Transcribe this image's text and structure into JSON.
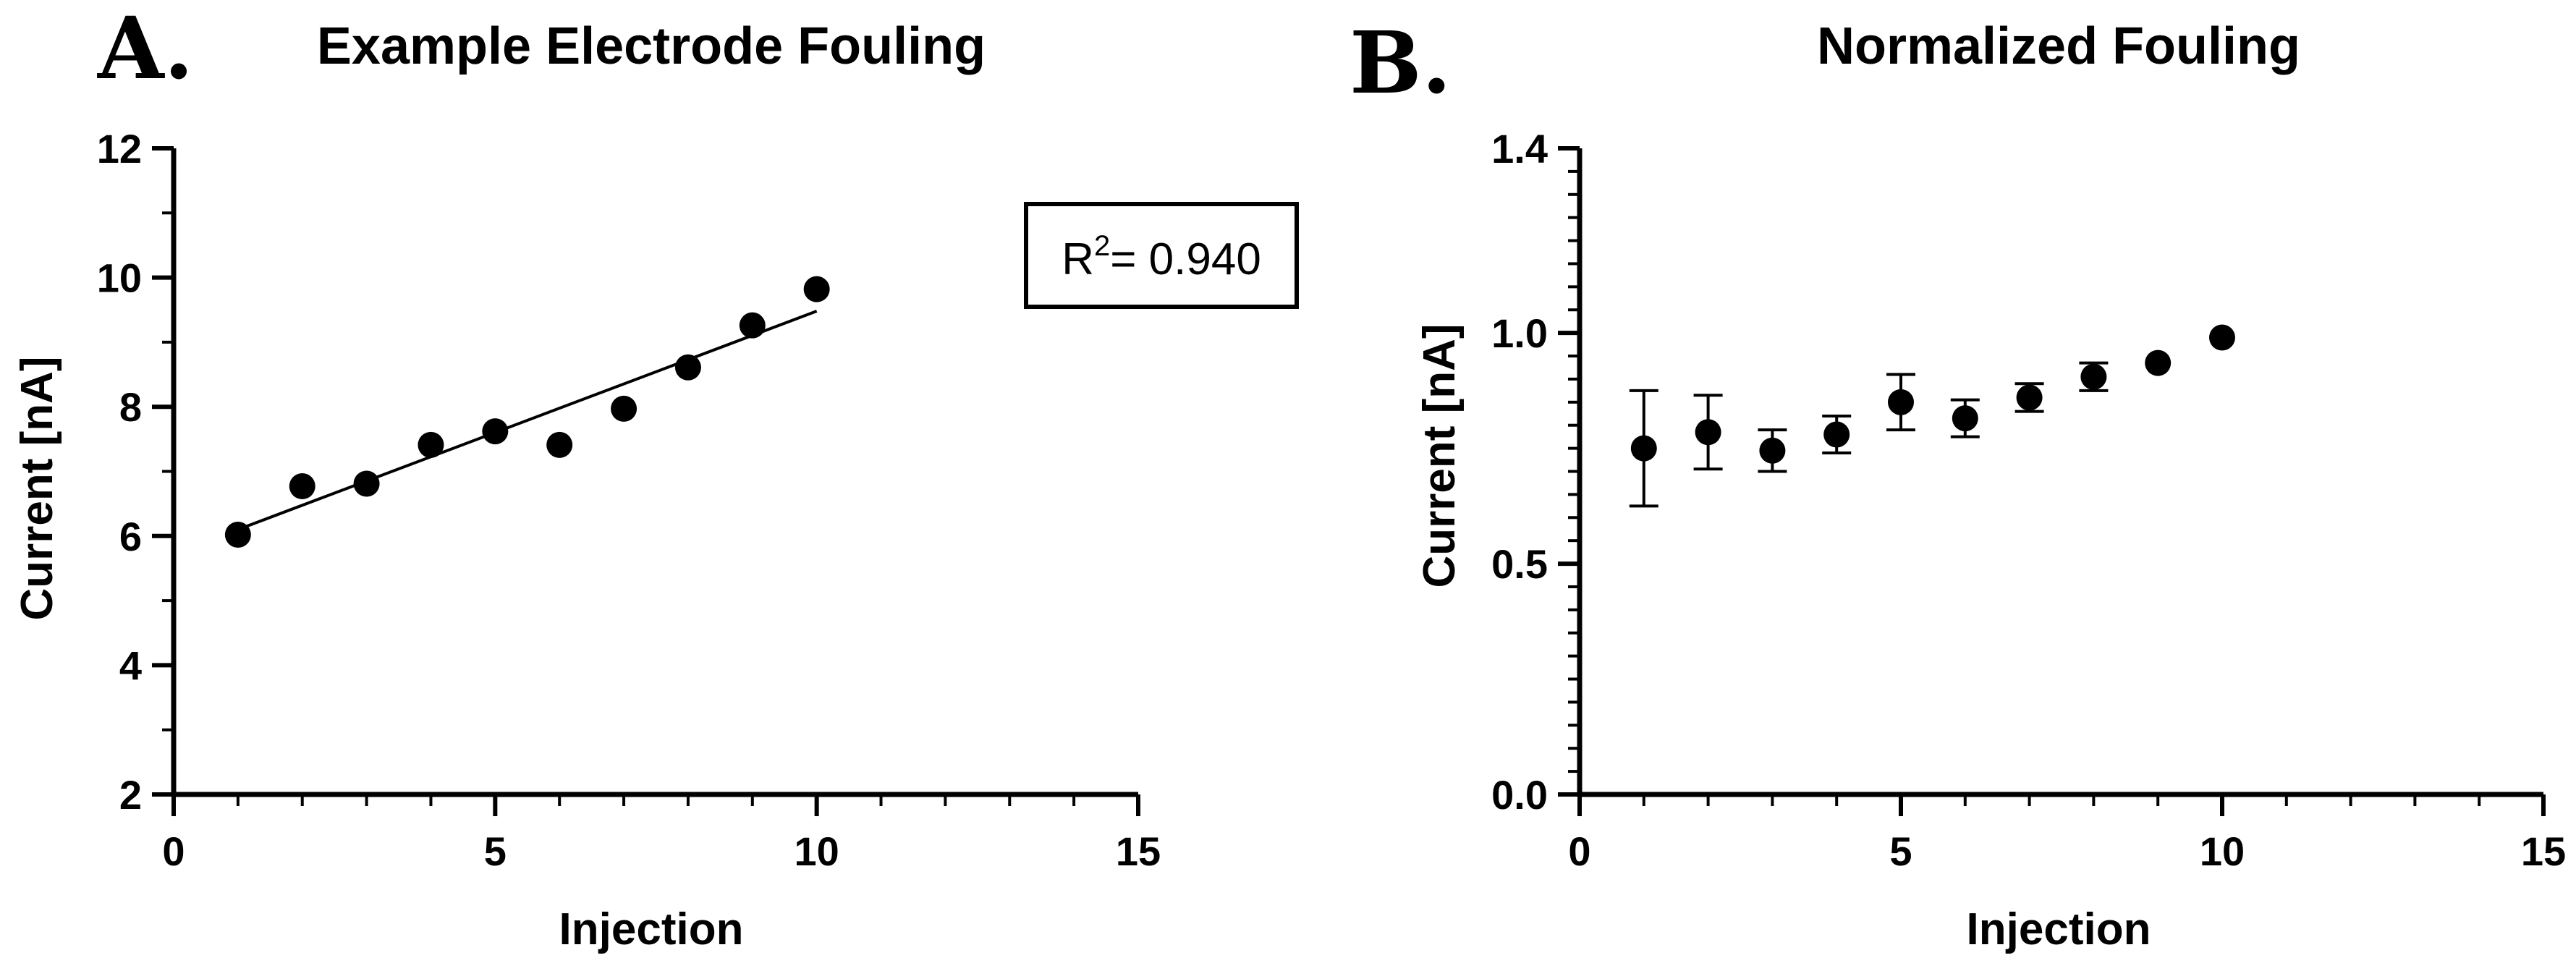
{
  "chart_data": [
    {
      "type": "scatter",
      "panel": "A.",
      "title": "Example Electrode Fouling",
      "xlabel": "Injection",
      "ylabel": "Current [nA]",
      "xlim": [
        0,
        15
      ],
      "ylim": [
        2,
        12
      ],
      "xticks": [
        "0",
        "5",
        "10",
        "15"
      ],
      "yticks": [
        "2",
        "4",
        "6",
        "8",
        "10",
        "12"
      ],
      "x": [
        1,
        2,
        3,
        4,
        5,
        6,
        7,
        8,
        9,
        10
      ],
      "y": [
        6.02,
        6.77,
        6.81,
        7.41,
        7.62,
        7.41,
        7.97,
        8.61,
        9.26,
        9.82
      ],
      "fit_line": {
        "x": [
          1,
          10
        ],
        "y": [
          6.1,
          9.48
        ]
      },
      "annotation": {
        "prefix": "R",
        "sup": "2",
        "suffix": "= 0.940"
      },
      "grid": false
    },
    {
      "type": "scatter",
      "panel": "B.",
      "title": "Normalized Fouling",
      "xlabel": "Injection",
      "ylabel": "Current [nA]",
      "xlim": [
        0,
        15
      ],
      "ylim": [
        0.0,
        1.4
      ],
      "xticks": [
        "0",
        "5",
        "10",
        "15"
      ],
      "yticks": [
        "0.0",
        "0.5",
        "1.0",
        "1.4"
      ],
      "ytick_values": [
        0.0,
        0.5,
        1.0,
        1.4
      ],
      "x": [
        1,
        2,
        3,
        4,
        5,
        6,
        7,
        8,
        9,
        10
      ],
      "y": [
        0.75,
        0.785,
        0.745,
        0.78,
        0.85,
        0.815,
        0.86,
        0.905,
        0.935,
        0.99
      ],
      "error": [
        0.125,
        0.08,
        0.045,
        0.04,
        0.06,
        0.04,
        0.03,
        0.03,
        0.0,
        0.0
      ],
      "grid": false
    }
  ]
}
